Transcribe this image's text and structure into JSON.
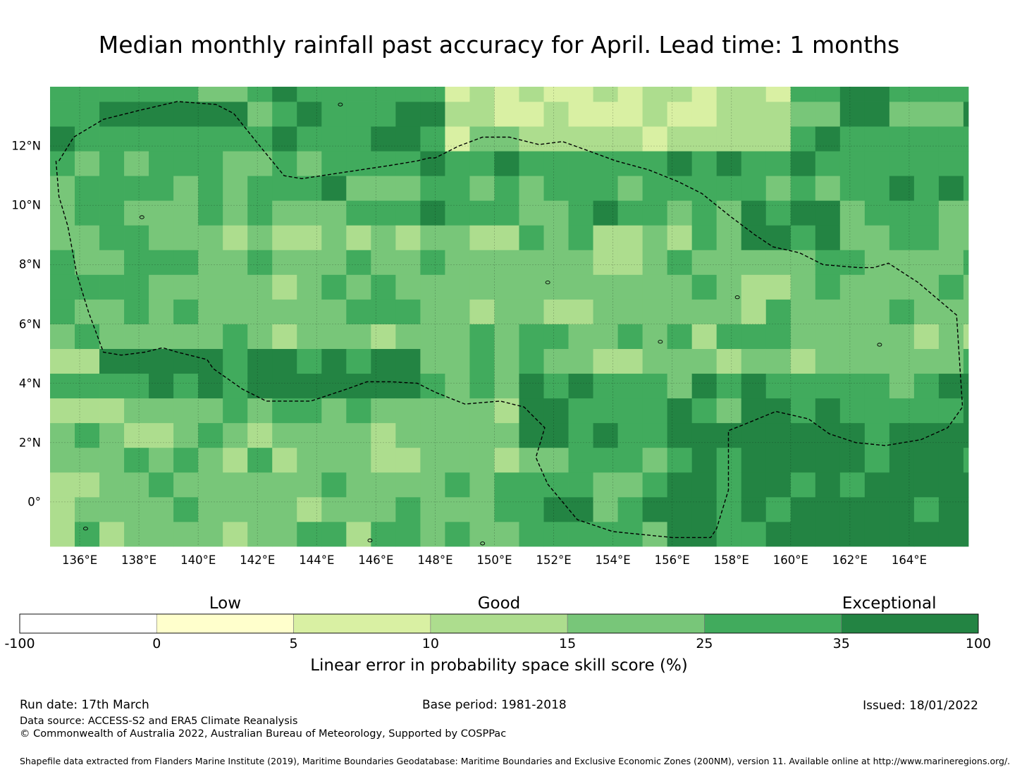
{
  "title": "Median monthly rainfall past accuracy for April. Lead time: 1 months",
  "map": {
    "lon_range": [
      135,
      166
    ],
    "lat_range": [
      -1.5,
      14
    ],
    "lon_ticks": [
      "136°E",
      "138°E",
      "140°E",
      "142°E",
      "144°E",
      "146°E",
      "148°E",
      "150°E",
      "152°E",
      "154°E",
      "156°E",
      "158°E",
      "160°E",
      "162°E",
      "164°E"
    ],
    "lat_ticks": [
      "12°N",
      "10°N",
      "8°N",
      "6°N",
      "4°N",
      "2°N",
      "0°"
    ],
    "grid_step_deg": 0.8333,
    "eez_boundary_lonlat": [
      [
        135.3,
        11.5
      ],
      [
        135.8,
        12.3
      ],
      [
        136.8,
        12.9
      ],
      [
        138.0,
        13.2
      ],
      [
        139.3,
        13.5
      ],
      [
        140.6,
        13.4
      ],
      [
        141.2,
        13.1
      ],
      [
        142.0,
        12.1
      ],
      [
        142.9,
        11.0
      ],
      [
        143.5,
        10.9
      ],
      [
        144.5,
        11.05
      ],
      [
        145.5,
        11.2
      ],
      [
        146.5,
        11.35
      ],
      [
        147.4,
        11.5
      ],
      [
        147.8,
        11.6
      ],
      [
        148.0,
        11.6
      ],
      [
        148.8,
        12.0
      ],
      [
        149.6,
        12.3
      ],
      [
        150.5,
        12.3
      ],
      [
        151.5,
        12.05
      ],
      [
        152.3,
        12.15
      ],
      [
        153.0,
        11.9
      ],
      [
        154.1,
        11.5
      ],
      [
        155.2,
        11.2
      ],
      [
        156.2,
        10.8
      ],
      [
        157.0,
        10.4
      ],
      [
        158.0,
        9.6
      ],
      [
        158.8,
        9.0
      ],
      [
        159.4,
        8.6
      ],
      [
        160.3,
        8.4
      ],
      [
        161.1,
        8.0
      ],
      [
        162.3,
        7.9
      ],
      [
        162.8,
        7.9
      ],
      [
        163.3,
        8.05
      ],
      [
        164.3,
        7.4
      ],
      [
        165.6,
        6.3
      ],
      [
        165.8,
        3.2
      ],
      [
        165.3,
        2.5
      ],
      [
        164.4,
        2.1
      ],
      [
        163.2,
        1.9
      ],
      [
        162.2,
        2.0
      ],
      [
        161.3,
        2.3
      ],
      [
        160.6,
        2.8
      ],
      [
        159.5,
        3.05
      ],
      [
        158.4,
        2.6
      ],
      [
        157.9,
        2.4
      ],
      [
        157.9,
        1.5
      ],
      [
        157.9,
        0.4
      ],
      [
        157.5,
        -0.9
      ],
      [
        157.3,
        -1.2
      ],
      [
        156.0,
        -1.2
      ],
      [
        155.0,
        -1.1
      ],
      [
        154.0,
        -1.0
      ],
      [
        152.8,
        -0.6
      ],
      [
        151.8,
        0.6
      ],
      [
        151.4,
        1.5
      ],
      [
        151.7,
        2.5
      ],
      [
        151.0,
        3.2
      ],
      [
        150.2,
        3.4
      ],
      [
        149.0,
        3.3
      ],
      [
        148.0,
        3.7
      ],
      [
        147.4,
        4.0
      ],
      [
        146.5,
        4.05
      ],
      [
        145.7,
        4.05
      ],
      [
        145.0,
        3.8
      ],
      [
        143.8,
        3.4
      ],
      [
        142.3,
        3.4
      ],
      [
        141.5,
        3.8
      ],
      [
        140.5,
        4.5
      ],
      [
        140.3,
        4.8
      ],
      [
        139.3,
        5.05
      ],
      [
        138.8,
        5.2
      ],
      [
        138.2,
        5.05
      ],
      [
        137.4,
        4.95
      ],
      [
        136.8,
        5.05
      ],
      [
        136.3,
        6.4
      ],
      [
        135.9,
        7.7
      ],
      [
        135.6,
        9.3
      ],
      [
        135.3,
        10.3
      ],
      [
        135.2,
        11.5
      ]
    ]
  },
  "colorbar": {
    "ticks": [
      "-100",
      "0",
      "5",
      "10",
      "15",
      "25",
      "35",
      "100"
    ],
    "colors": [
      "#ffffff",
      "#ffffcc",
      "#d9f0a3",
      "#addd8e",
      "#78c679",
      "#41ab5d",
      "#238443"
    ],
    "categories": [
      {
        "label": "Low",
        "band": 1.5
      },
      {
        "label": "Good",
        "band": 3.5
      },
      {
        "label": "Exceptional",
        "band": 6.35
      }
    ],
    "axis_label": "Linear error in probability space skill score (%)"
  },
  "footer": {
    "run_date": "Run date: 17th March",
    "base_period": "Base period: 1981-2018",
    "issued": "Issued: 18/01/2022",
    "data_source": "Data source: ACCESS-S2 and ERA5 Climate Reanalysis",
    "copyright": "© Commonwealth of Australia 2022, Australian Bureau of Meteorology, Supported by COSPPac",
    "shapefile": "Shapefile data extracted from Flanders Marine Institute (2019), Maritime Boundaries Geodatabase: Maritime Boundaries and Exclusive Economic Zones (200NM), version 11. Available online at http://www.marineregions.org/."
  }
}
